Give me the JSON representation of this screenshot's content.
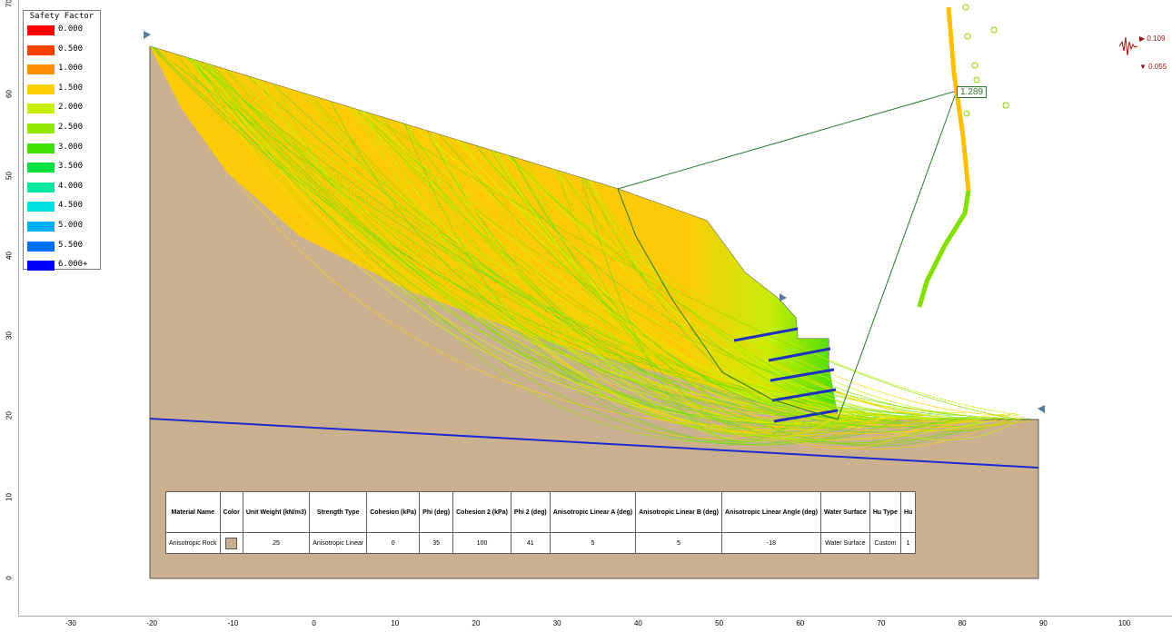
{
  "legend": {
    "title": "Safety Factor",
    "items": [
      {
        "label": "0.000",
        "color": "#ff0000"
      },
      {
        "label": "0.500",
        "color": "#ff4000"
      },
      {
        "label": "1.000",
        "color": "#ff9000"
      },
      {
        "label": "1.500",
        "color": "#ffd000"
      },
      {
        "label": "2.000",
        "color": "#c8f000"
      },
      {
        "label": "2.500",
        "color": "#90e800"
      },
      {
        "label": "3.000",
        "color": "#40e000"
      },
      {
        "label": "3.500",
        "color": "#00e040"
      },
      {
        "label": "4.000",
        "color": "#00e8a0"
      },
      {
        "label": "4.500",
        "color": "#00e0e0"
      },
      {
        "label": "5.000",
        "color": "#00b0ff"
      },
      {
        "label": "5.500",
        "color": "#0070ff"
      },
      {
        "label": "6.000+",
        "color": "#0000ff"
      }
    ]
  },
  "axes": {
    "x_ticks": [
      "-30",
      "-20",
      "-10",
      "0",
      "10",
      "20",
      "30",
      "40",
      "50",
      "60",
      "70",
      "80",
      "90",
      "100"
    ],
    "y_ticks": [
      "70",
      "60",
      "50",
      "40",
      "30",
      "20",
      "10",
      "0"
    ]
  },
  "critical_fs": "1.289",
  "seismic": {
    "h": "0.109",
    "v": "0.055"
  },
  "material_table": {
    "headers": [
      "Material Name",
      "Color",
      "Unit Weight (kN/m3)",
      "Strength Type",
      "Cohesion (kPa)",
      "Phi (deg)",
      "Cohesion 2 (kPa)",
      "Phi 2 (deg)",
      "Anisotropic Linear A (deg)",
      "Anisotropic Linear B (deg)",
      "Anisotropic Linear Angle (deg)",
      "Water Surface",
      "Hu Type",
      "Hu"
    ],
    "row": [
      "Anisotropic Rock",
      "",
      "25",
      "Anisotropic Linear",
      "0",
      "35",
      "100",
      "41",
      "5",
      "5",
      "-18",
      "Water Surface",
      "Custom",
      "1"
    ]
  },
  "colors": {
    "soil": "#cbb08f",
    "water": "#1a2ad0",
    "bolt": "#2030c0",
    "orange_zone": "#ffcc00"
  }
}
